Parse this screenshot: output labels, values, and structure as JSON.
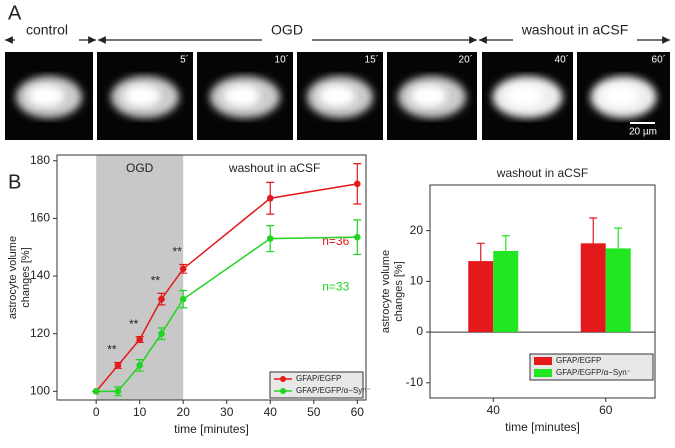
{
  "panel_a": {
    "label": "A",
    "segments": [
      "control",
      "OGD",
      "washout in aCSF"
    ],
    "frame_times": [
      "5´",
      "10´",
      "15´",
      "20´",
      "40´",
      "60´"
    ],
    "scale_bar": "20 µm"
  },
  "panel_b_label": "B",
  "chart_data": [
    {
      "type": "line",
      "ylabel": "astrocyte volume changes [%]",
      "xlabel": "time [minutes]",
      "x": [
        0,
        5,
        10,
        15,
        20,
        40,
        60
      ],
      "xlim": [
        -9,
        62
      ],
      "xticks": [
        0,
        10,
        20,
        30,
        40,
        50,
        60
      ],
      "ylim": [
        97,
        182
      ],
      "yticks": [
        100,
        120,
        140,
        160,
        180
      ],
      "shade": [
        0,
        20
      ],
      "shade_label": "OGD",
      "after_label": "washout in aCSF",
      "series": [
        {
          "name": "GFAP/EGFP",
          "color": "#e3191c",
          "values": [
            100,
            109,
            118,
            132,
            142.5,
            167,
            172
          ],
          "errors": [
            0,
            1,
            1,
            2,
            1.5,
            5.5,
            7
          ],
          "n_label": "n=36"
        },
        {
          "name": "GFAP/EGFP/α−Syn⁻",
          "color": "#22d422",
          "values": [
            100,
            100,
            109,
            120,
            132,
            153,
            153.5
          ],
          "errors": [
            0,
            1.5,
            2,
            2,
            3,
            4.5,
            6
          ],
          "n_label": "n=33"
        }
      ],
      "annotations": [
        {
          "text": "**",
          "x": 5
        },
        {
          "text": "**",
          "x": 10
        },
        {
          "text": "**",
          "x": 15
        },
        {
          "text": "**",
          "x": 20
        }
      ],
      "legend": "lower right"
    },
    {
      "type": "bar",
      "title": "washout in aCSF",
      "ylabel": "astrocyte volume changes [%]",
      "xlabel": "time [minutes]",
      "categories": [
        "40",
        "60"
      ],
      "ylim": [
        -13,
        29
      ],
      "yticks": [
        -10,
        0,
        10,
        20
      ],
      "series": [
        {
          "name": "GFAP/EGFP",
          "color": "#e3191c",
          "values": [
            14,
            17.5
          ],
          "errors": [
            3.5,
            5
          ]
        },
        {
          "name": "GFAP/EGFP/α−Syn⁻",
          "color": "#22e622",
          "values": [
            16,
            16.5
          ],
          "errors": [
            3,
            4
          ]
        }
      ],
      "legend": "lower right"
    }
  ]
}
